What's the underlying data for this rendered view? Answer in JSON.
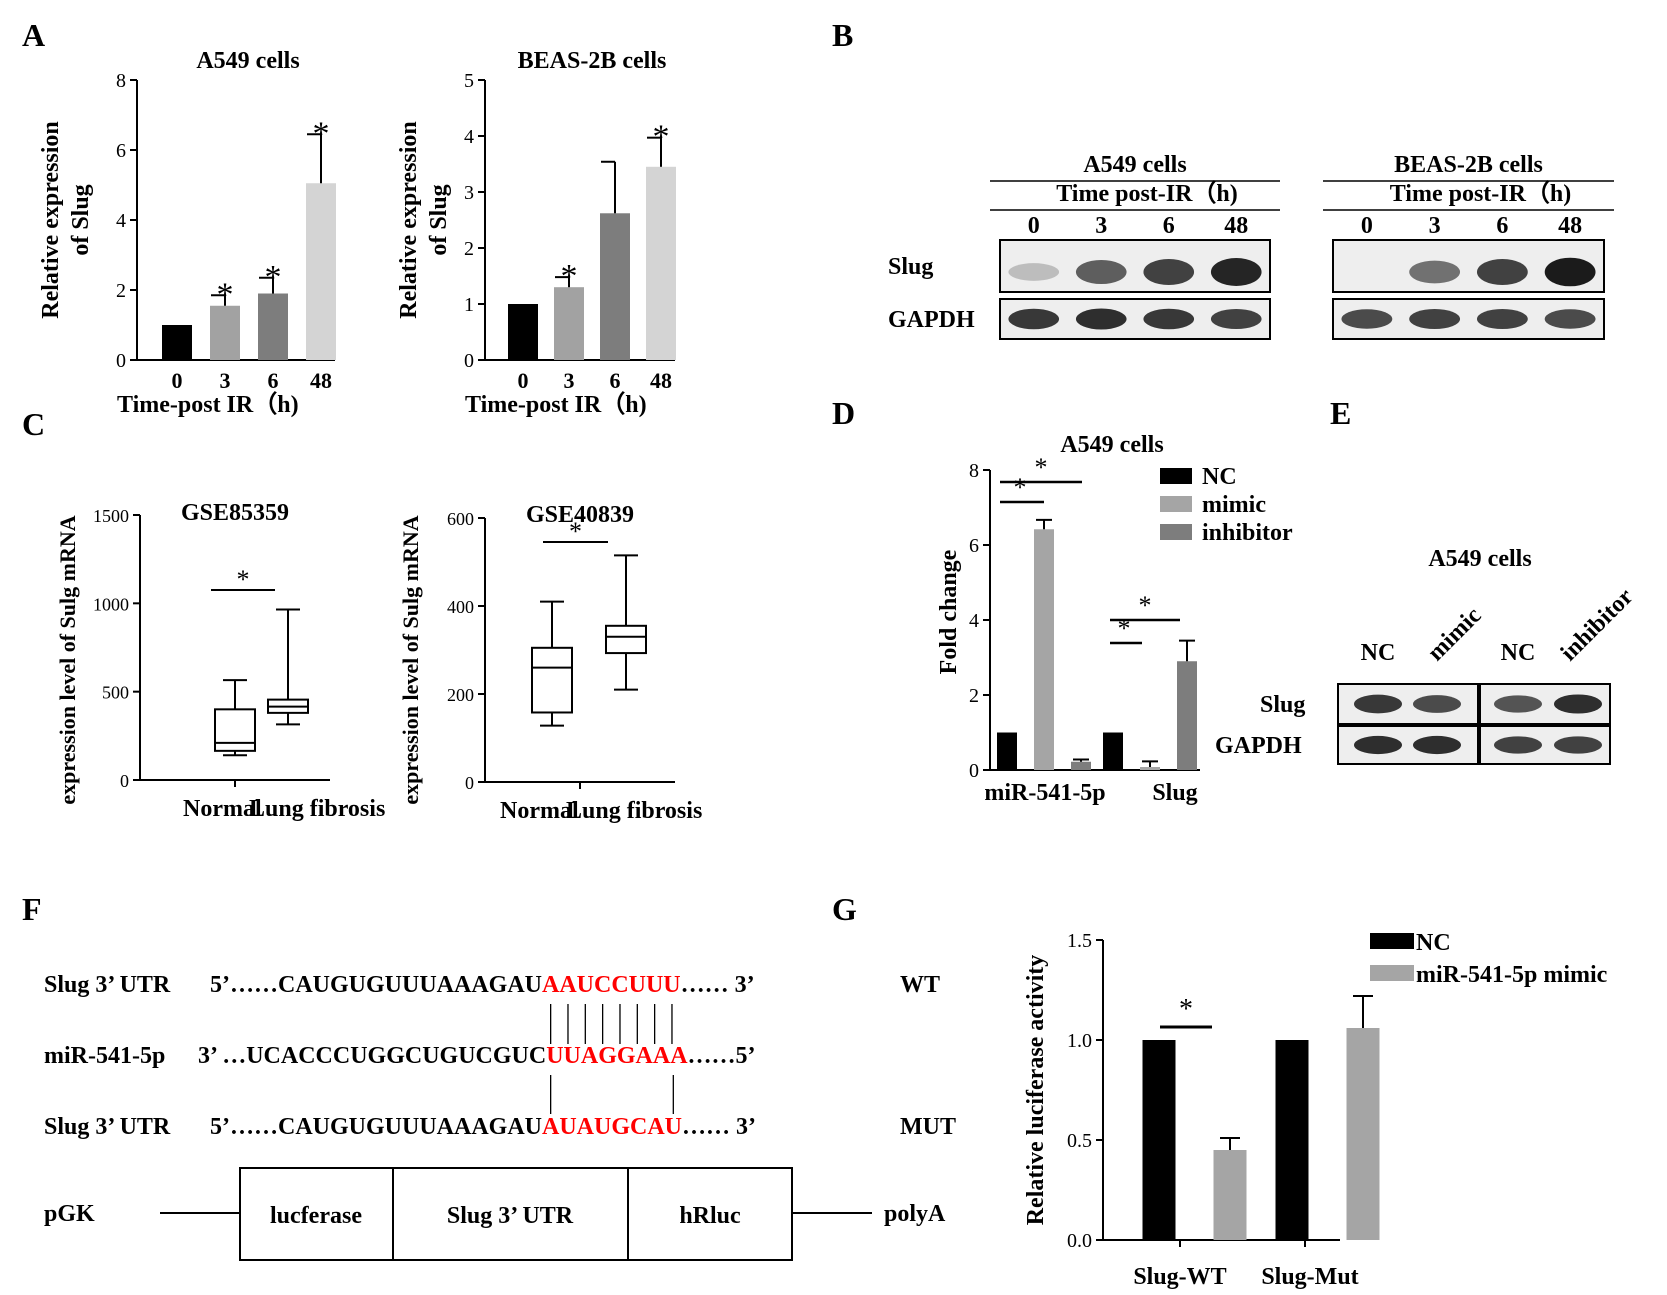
{
  "colors": {
    "black": "#000000",
    "gray1": "#9e9e9e",
    "gray2": "#7b7b7b",
    "gray3": "#d2d2d2",
    "red": "#ff0000",
    "blot_bg": "#e6e6e6"
  },
  "panels": {
    "A": "A",
    "B": "B",
    "C": "C",
    "D": "D",
    "E": "E",
    "F": "F",
    "G": "G"
  },
  "chart_data": [
    {
      "id": "A1",
      "type": "bar",
      "title": "A549 cells",
      "categories": [
        "0",
        "3",
        "6",
        "48"
      ],
      "values": [
        1.0,
        1.55,
        1.9,
        5.05
      ],
      "errors": [
        0,
        0.3,
        0.45,
        1.4
      ],
      "sig": [
        "",
        "*",
        "*",
        "*"
      ],
      "colors": [
        "#000000",
        "#a2a2a2",
        "#7d7d7d",
        "#d4d4d4"
      ],
      "ylim": [
        0,
        8
      ],
      "yticks": [
        "0",
        "2",
        "4",
        "6",
        "8"
      ],
      "ylabel": [
        "Relative expression",
        "of Slug"
      ],
      "xlabel": "Time-post IR（h)"
    },
    {
      "id": "A2",
      "type": "bar",
      "title": "BEAS-2B cells",
      "categories": [
        "0",
        "3",
        "6",
        "48"
      ],
      "values": [
        1.0,
        1.3,
        2.62,
        3.45
      ],
      "errors": [
        0,
        0.18,
        0.92,
        0.52
      ],
      "sig": [
        "",
        "*",
        "",
        "*"
      ],
      "colors": [
        "#000000",
        "#a2a2a2",
        "#7d7d7d",
        "#d4d4d4"
      ],
      "ylim": [
        0,
        5
      ],
      "yticks": [
        "0",
        "1",
        "2",
        "3",
        "4",
        "5"
      ],
      "ylabel": [
        "Relative expression",
        "of Slug"
      ],
      "xlabel": "Time-post IR（h)"
    },
    {
      "id": "C1",
      "type": "boxplot",
      "title": "GSE85359",
      "categories": [
        "Normal",
        "Lung fibrosis"
      ],
      "boxes": [
        {
          "min": 140,
          "q1": 165,
          "median": 210,
          "q3": 400,
          "max": 565
        },
        {
          "min": 315,
          "q1": 380,
          "median": 415,
          "q3": 455,
          "max": 965
        }
      ],
      "ylim": [
        0,
        1500
      ],
      "yticks": [
        "0",
        "500",
        "1000",
        "1500"
      ],
      "ylabel": "expression  level  of  Sulg mRNA",
      "sig": "*"
    },
    {
      "id": "C2",
      "type": "boxplot",
      "title": "GSE40839",
      "categories": [
        "Normal",
        "Lung fibrosis"
      ],
      "boxes": [
        {
          "min": 128,
          "q1": 158,
          "median": 260,
          "q3": 305,
          "max": 410
        },
        {
          "min": 210,
          "q1": 293,
          "median": 330,
          "q3": 355,
          "max": 515
        }
      ],
      "ylim": [
        0,
        600
      ],
      "yticks": [
        "0",
        "200",
        "400",
        "600"
      ],
      "ylabel": "expression  level  of  Sulg mRNA",
      "sig": "*"
    },
    {
      "id": "D",
      "type": "bar",
      "title": "A549 cells",
      "categories": [
        "miR-541-5p",
        "Slug"
      ],
      "series": [
        {
          "name": "NC",
          "color": "#000000",
          "values": [
            1.0,
            1.0
          ],
          "errors": [
            0,
            0
          ]
        },
        {
          "name": "mimic",
          "color": "#a5a5a5",
          "values": [
            6.42,
            0.08
          ],
          "errors": [
            0.25,
            0.15
          ]
        },
        {
          "name": "inhibitor",
          "color": "#7d7d7d",
          "values": [
            0.22,
            2.9
          ],
          "errors": [
            0.06,
            0.55
          ]
        }
      ],
      "ylim": [
        0,
        8
      ],
      "yticks": [
        "0",
        "2",
        "4",
        "6",
        "8"
      ],
      "ylabel": "Fold change",
      "sig": "*"
    },
    {
      "id": "G",
      "type": "bar",
      "categories": [
        "Slug-WT",
        "Slug-Mut"
      ],
      "series": [
        {
          "name": "NC",
          "color": "#000000",
          "values": [
            1.0,
            1.0
          ],
          "errors": [
            0,
            0
          ]
        },
        {
          "name": "miR-541-5p mimic",
          "color": "#a5a5a5",
          "values": [
            0.45,
            1.06
          ],
          "errors": [
            0.06,
            0.16
          ]
        }
      ],
      "ylim": [
        0,
        1.5
      ],
      "yticks": [
        "0.0",
        "0.5",
        "1.0",
        "1.5"
      ],
      "ylabel": "Relative luciferase activity",
      "sig": "*"
    }
  ],
  "blots": {
    "B_left": {
      "title1": "A549 cells",
      "title2": "Time post-IR（h)",
      "lanes": [
        "0",
        "3",
        "6",
        "48"
      ],
      "rows": [
        {
          "label": "Slug",
          "intensity": [
            0.15,
            0.65,
            0.8,
            0.95
          ]
        },
        {
          "label": "GAPDH",
          "intensity": [
            0.85,
            0.9,
            0.85,
            0.8
          ]
        }
      ]
    },
    "B_right": {
      "title1": "BEAS-2B cells",
      "title2": "Time post-IR（h)",
      "lanes": [
        "0",
        "3",
        "6",
        "48"
      ],
      "rows": [
        {
          "label": "Slug",
          "intensity": [
            0.0,
            0.55,
            0.8,
            1.0
          ]
        },
        {
          "label": "GAPDH",
          "intensity": [
            0.75,
            0.8,
            0.8,
            0.75
          ]
        }
      ]
    },
    "E": {
      "title": "A549 cells",
      "lanes": [
        "NC",
        "mimic",
        "NC",
        "inhibitor"
      ],
      "rows": [
        {
          "label": "Slug",
          "intensity": [
            0.85,
            0.75,
            0.7,
            0.9
          ]
        },
        {
          "label": "GAPDH",
          "intensity": [
            0.9,
            0.9,
            0.8,
            0.8
          ]
        }
      ]
    }
  },
  "panel_F": {
    "row1": {
      "name": "Slug 3’ UTR",
      "p5": "5’……CAUGUGUUUAAAGAU",
      "red": "AAUCCUUU",
      "p3": "…… 3’",
      "tag": "WT"
    },
    "row2": {
      "name": "miR-541-5p",
      "p5": "3’ …UCACCCUGGCUGUCGUC",
      "red": "UUAGGAAA",
      "p3": "……5’"
    },
    "row3": {
      "name": "Slug 3’ UTR",
      "p5": "5’……CAUGUGUUUAAAGAU",
      "red": "AUAUGCAU",
      "p3": "…… 3’",
      "tag": "MUT"
    },
    "construct": {
      "left": "pGK",
      "boxes": [
        "lucferase",
        "Slug 3’ UTR",
        "hRluc"
      ],
      "right": "polyA"
    }
  }
}
